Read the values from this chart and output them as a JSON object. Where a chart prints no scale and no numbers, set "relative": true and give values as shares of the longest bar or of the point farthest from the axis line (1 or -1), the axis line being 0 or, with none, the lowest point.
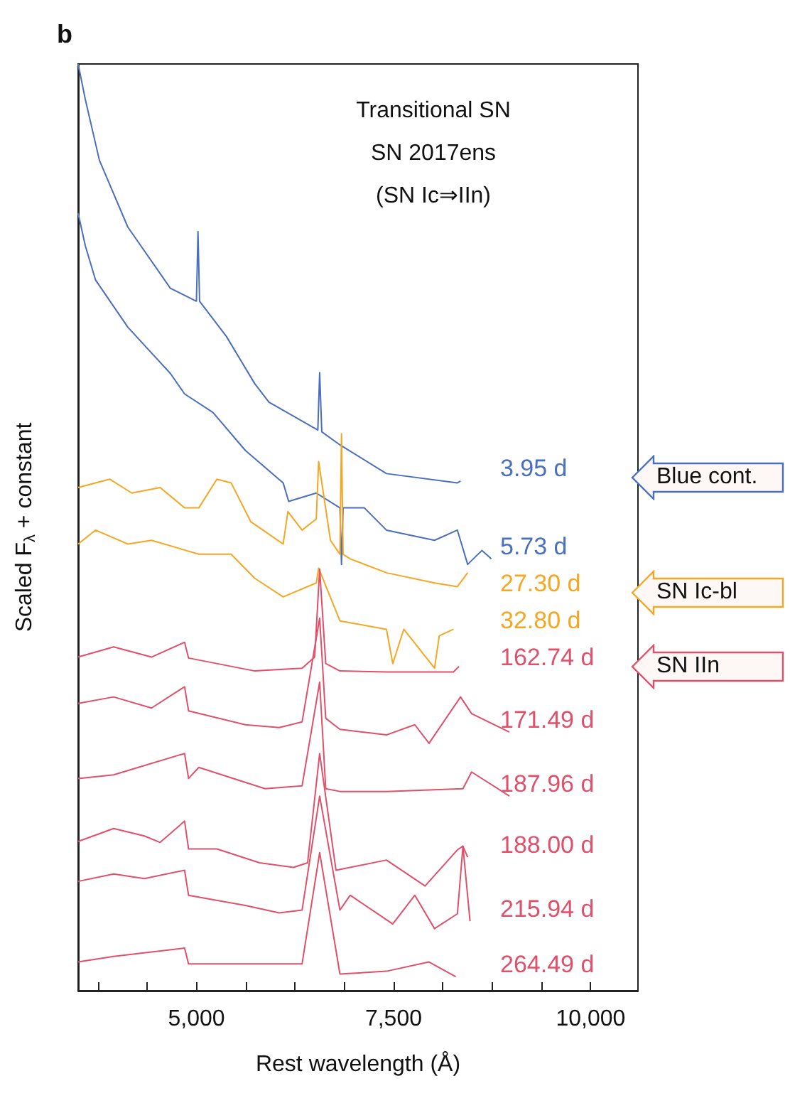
{
  "chart_data": {
    "type": "line",
    "title": "Transitional SN\nSN 2017ens\n(SN Ic⇒IIn)",
    "xlabel": "Rest wavelength (Å)",
    "ylabel": "Scaled F$_{λ}$ + constant",
    "annotations": [
      "b",
      "Blue cont.",
      "SN Ic-bl",
      "SN IIn"
    ],
    "relative": true,
    "marker": "none",
    "line_style": "solid",
    "legend": false,
    "grid": false,
    "xlim": [
      3500,
      10600
    ],
    "xticks": [
      {
        "value": 3750,
        "label": null
      },
      {
        "value": 4375,
        "label": null
      },
      {
        "value": 5000,
        "label": "5,000"
      },
      {
        "value": 5625,
        "label": null
      },
      {
        "value": 6250,
        "label": null
      },
      {
        "value": 6875,
        "label": null
      },
      {
        "value": 7500,
        "label": "7,500"
      },
      {
        "value": 8125,
        "label": null
      },
      {
        "value": 8750,
        "label": null
      },
      {
        "value": 9375,
        "label": null
      },
      {
        "value": 10000,
        "label": "10,000"
      }
    ],
    "series": [
      {
        "name": "3.95 d",
        "color": "#4a6fbf",
        "x": [
          3500,
          3590,
          3770,
          4130,
          4670,
          5000,
          5020,
          5040,
          5380,
          5740,
          5920,
          6540,
          6563,
          6590,
          6820,
          7410,
          8310,
          8350
        ],
        "values": [
          1.0,
          0.962,
          0.896,
          0.824,
          0.758,
          0.744,
          0.819,
          0.744,
          0.706,
          0.655,
          0.635,
          0.605,
          0.667,
          0.603,
          0.589,
          0.558,
          0.548,
          0.55
        ]
      },
      {
        "name": "5.73 d",
        "color": "#4a6fbf",
        "x": [
          3500,
          3590,
          3720,
          4130,
          4670,
          4850,
          5210,
          5620,
          6100,
          6170,
          6520,
          6820,
          6840,
          6860,
          7130,
          7410,
          8020,
          8310,
          8440,
          8620,
          8740
        ],
        "values": [
          0.839,
          0.804,
          0.767,
          0.716,
          0.666,
          0.644,
          0.624,
          0.583,
          0.548,
          0.528,
          0.537,
          0.521,
          0.46,
          0.521,
          0.521,
          0.497,
          0.486,
          0.497,
          0.46,
          0.475,
          0.466
        ]
      },
      {
        "name": "27.30 d",
        "color": "#f5a623",
        "x": [
          3500,
          3900,
          4180,
          4540,
          4850,
          5030,
          5260,
          5440,
          5690,
          6100,
          6160,
          6340,
          6520,
          6550,
          6700,
          6820,
          6840,
          6860,
          6950,
          7410,
          8020,
          8310,
          8440
        ],
        "values": [
          0.543,
          0.552,
          0.537,
          0.543,
          0.521,
          0.521,
          0.552,
          0.548,
          0.506,
          0.482,
          0.517,
          0.497,
          0.509,
          0.571,
          0.486,
          0.471,
          0.601,
          0.471,
          0.466,
          0.451,
          0.44,
          0.436,
          0.451
        ]
      },
      {
        "name": "32.80 d",
        "color": "#f5a623",
        "x": [
          3500,
          3720,
          4130,
          4430,
          5030,
          5440,
          5740,
          6100,
          6520,
          6550,
          6820,
          7410,
          7490,
          7630,
          8020,
          8080,
          8260
        ],
        "values": [
          0.482,
          0.497,
          0.482,
          0.486,
          0.471,
          0.471,
          0.445,
          0.425,
          0.44,
          0.456,
          0.399,
          0.39,
          0.353,
          0.39,
          0.348,
          0.383,
          0.39
        ]
      },
      {
        "name": "162.74 d",
        "color": "#e0506a",
        "x": [
          3500,
          3950,
          4430,
          4850,
          4900,
          5740,
          6340,
          6500,
          6563,
          6640,
          6820,
          7410,
          8260,
          8330
        ],
        "values": [
          0.36,
          0.371,
          0.36,
          0.376,
          0.359,
          0.345,
          0.348,
          0.36,
          0.455,
          0.353,
          0.345,
          0.344,
          0.344,
          0.35
        ]
      },
      {
        "name": "171.49 d",
        "color": "#e0506a",
        "x": [
          3500,
          3950,
          4430,
          4850,
          4900,
          5620,
          6050,
          6340,
          6563,
          6640,
          6820,
          7410,
          7770,
          7950,
          8350,
          8490,
          8970
        ],
        "values": [
          0.31,
          0.317,
          0.305,
          0.328,
          0.302,
          0.287,
          0.284,
          0.29,
          0.402,
          0.294,
          0.282,
          0.276,
          0.287,
          0.267,
          0.317,
          0.299,
          0.279
        ]
      },
      {
        "name": "187.96 d",
        "color": "#e0506a",
        "x": [
          3500,
          3950,
          4850,
          4900,
          5030,
          5870,
          6340,
          6563,
          6640,
          6820,
          7410,
          8380,
          8490,
          8970
        ],
        "values": [
          0.229,
          0.233,
          0.256,
          0.229,
          0.241,
          0.218,
          0.221,
          0.333,
          0.218,
          0.215,
          0.215,
          0.218,
          0.236,
          0.21
        ]
      },
      {
        "name": "188.00 d",
        "color": "#e0506a",
        "x": [
          3500,
          3950,
          4340,
          4540,
          4850,
          4900,
          5260,
          5800,
          6230,
          6410,
          6563,
          6770,
          7410,
          7900,
          8310,
          8380,
          8440
        ],
        "values": [
          0.161,
          0.175,
          0.167,
          0.16,
          0.183,
          0.153,
          0.153,
          0.138,
          0.133,
          0.138,
          0.256,
          0.13,
          0.141,
          0.113,
          0.152,
          0.156,
          0.144
        ]
      },
      {
        "name": "215.94 d",
        "color": "#e0506a",
        "x": [
          3500,
          3950,
          4340,
          4850,
          4900,
          5620,
          6050,
          6340,
          6563,
          6820,
          6950,
          7490,
          7770,
          8020,
          8310,
          8380,
          8470
        ],
        "values": [
          0.118,
          0.126,
          0.121,
          0.13,
          0.103,
          0.092,
          0.084,
          0.087,
          0.21,
          0.087,
          0.103,
          0.072,
          0.103,
          0.067,
          0.083,
          0.156,
          0.075
        ]
      },
      {
        "name": "264.49 d",
        "color": "#e0506a",
        "x": [
          3500,
          3950,
          4850,
          4900,
          5620,
          6340,
          6563,
          6820,
          7410,
          7950,
          8290
        ],
        "values": [
          0.031,
          0.037,
          0.046,
          0.029,
          0.029,
          0.029,
          0.149,
          0.018,
          0.021,
          0.031,
          0.015
        ]
      }
    ]
  }
}
